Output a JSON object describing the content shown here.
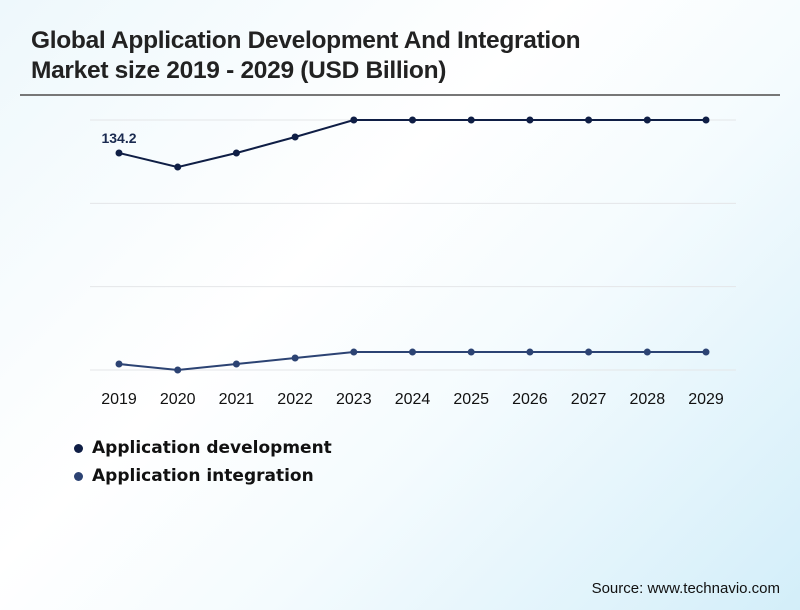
{
  "chart_data": {
    "type": "line",
    "title": "Global Application Development And Integration Market size 2019 - 2029 (USD Billion)",
    "xlabel": "",
    "ylabel": "",
    "x": [
      "2019",
      "2020",
      "2021",
      "2022",
      "2023",
      "2024",
      "2025",
      "2026",
      "2027",
      "2028",
      "2029"
    ],
    "series": [
      {
        "name": "Application development",
        "color": "#0f1e45",
        "values": [
          134.2,
          125.5,
          134.2,
          144.1,
          154.6,
          154.6,
          154.6,
          154.6,
          154.6,
          154.6,
          154.6
        ]
      },
      {
        "name": "Application integration",
        "color": "#2c4373",
        "values": [
          3.7,
          0,
          3.7,
          7.4,
          11.1,
          11.1,
          11.1,
          11.1,
          11.1,
          11.1,
          11.1
        ]
      }
    ],
    "annotations": [
      {
        "series": 0,
        "index": 0,
        "text": "134.2"
      }
    ],
    "ylim": [
      0,
      154.6
    ],
    "grid": true,
    "legend_position": "bottom-left"
  },
  "source": "Source: www.technavio.com"
}
